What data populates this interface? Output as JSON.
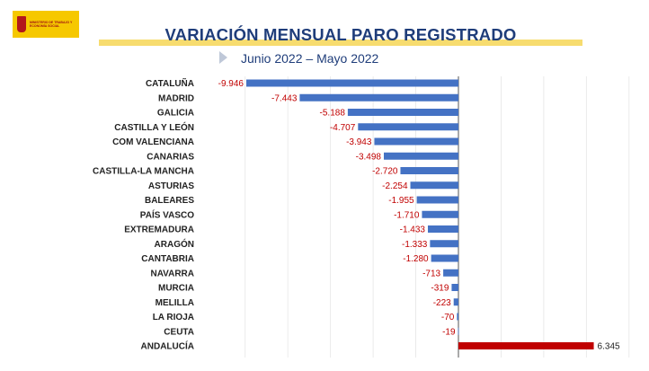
{
  "header": {
    "logo_text": "Ministerio de Trabajo y Economía Social",
    "title": "VARIACIÓN MENSUAL PARO REGISTRADO",
    "subtitle": "Junio 2022 – Mayo 2022"
  },
  "colors": {
    "negative_bar": "#4472c4",
    "positive_bar": "#c00000",
    "title": "#1f3d7a",
    "accent_band": "#f7dc6f"
  },
  "chart_data": {
    "type": "bar",
    "orientation": "horizontal",
    "title": "VARIACIÓN MENSUAL PARO REGISTRADO",
    "subtitle": "Junio 2022 – Mayo 2022",
    "categories": [
      "CATALUÑA",
      "MADRID",
      "GALICIA",
      "CASTILLA Y LEÓN",
      "COM VALENCIANA",
      "CANARIAS",
      "CASTILLA-LA MANCHA",
      "ASTURIAS",
      "BALEARES",
      "PAÍS VASCO",
      "EXTREMADURA",
      "ARAGÓN",
      "CANTABRIA",
      "NAVARRA",
      "MURCIA",
      "MELILLA",
      "LA RIOJA",
      "CEUTA",
      "ANDALUCÍA"
    ],
    "values": [
      -9946,
      -7443,
      -5188,
      -4707,
      -3943,
      -3498,
      -2720,
      -2254,
      -1955,
      -1710,
      -1433,
      -1333,
      -1280,
      -713,
      -319,
      -223,
      -70,
      -19,
      6345
    ],
    "value_labels": [
      "-9.946",
      "-7.443",
      "-5.188",
      "-4.707",
      "-3.943",
      "-3.498",
      "-2.720",
      "-2.254",
      "-1.955",
      "-1.710",
      "-1.433",
      "-1.333",
      "-1.280",
      "-713",
      "-319",
      "-223",
      "-70",
      "-19",
      "6.345"
    ],
    "xlim": [
      -10000,
      8000
    ],
    "grid": true,
    "legend": "none"
  }
}
